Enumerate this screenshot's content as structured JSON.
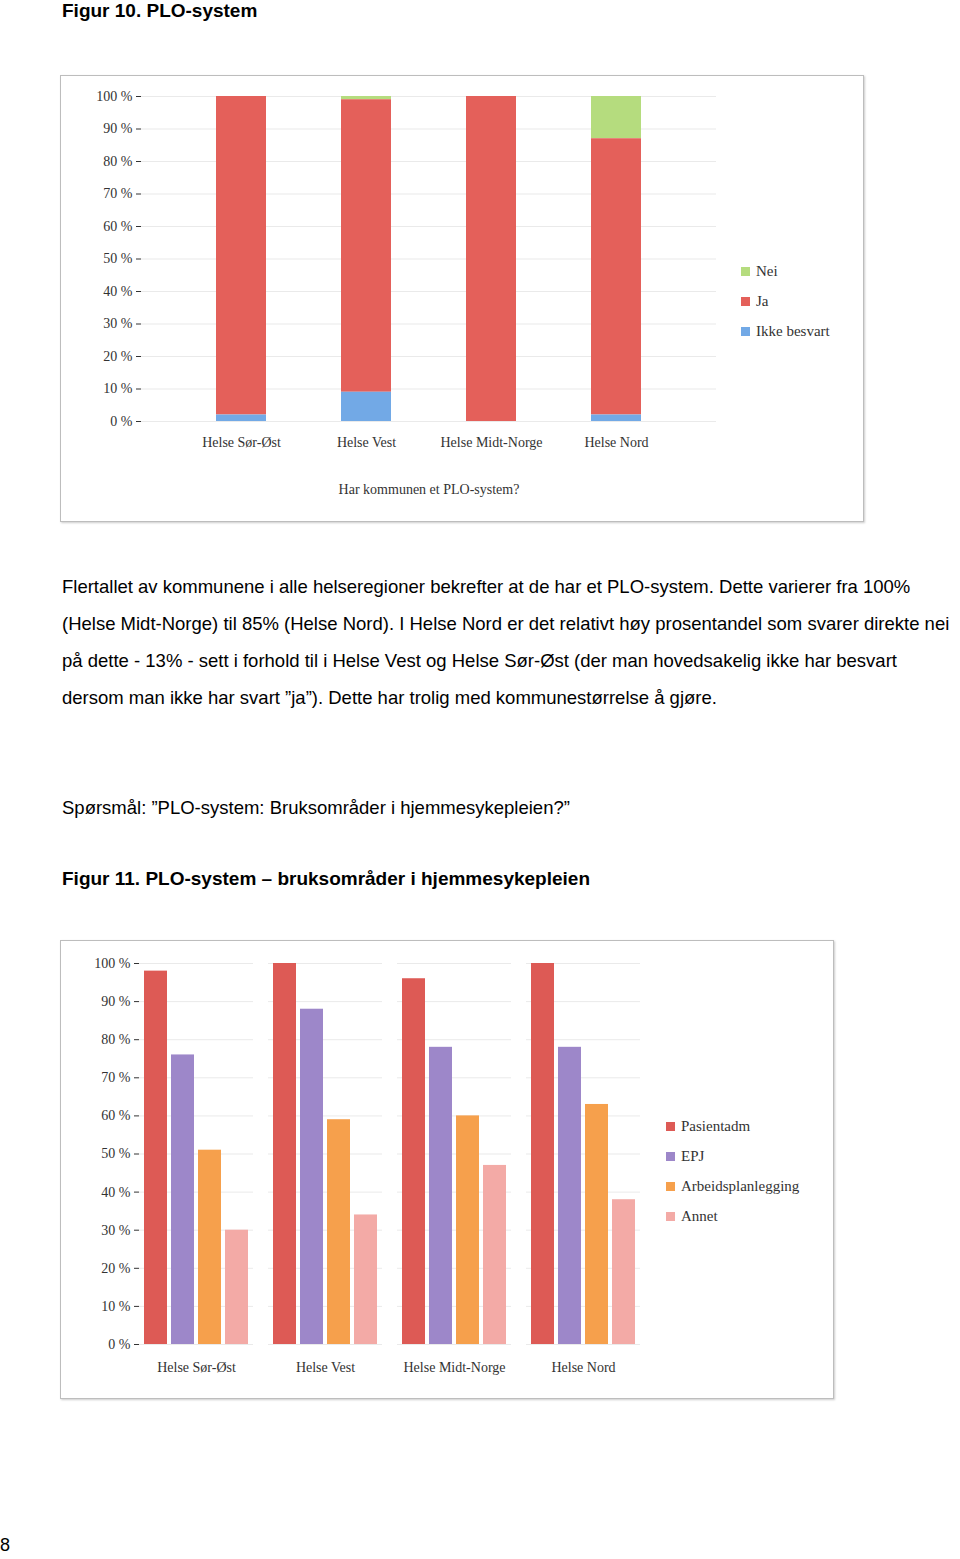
{
  "page": {
    "figure10_title": "Figur 10. PLO-system",
    "paragraph": "Flertallet av kommunene i alle helseregioner bekrefter at de har et PLO-system. Dette varierer fra 100% (Helse Midt-Norge) til 85% (Helse Nord). I Helse Nord er det relativt høy prosentandel som svarer direkte nei på dette - 13% - sett i forhold til i Helse Vest og Helse Sør-Øst (der man hovedsakelig ikke har besvart dersom man ikke har svart ”ja”). Dette har trolig med kommunestørrelse å gjøre.",
    "question": "Spørsmål: ”PLO-system: Bruksområder i hjemmesykepleien?”",
    "figure11_title": "Figur 11. PLO-system – bruksområder i hjemmesykepleien",
    "page_number": 8
  },
  "chart_data": [
    {
      "type": "bar",
      "stacked": true,
      "grid": true,
      "legend": "right",
      "x_label": "Har kommunen et PLO-system?",
      "categories": [
        "Helse Sør-Øst",
        "Helse Vest",
        "Helse Midt-Norge",
        "Helse Nord"
      ],
      "series": [
        {
          "name": "Nei",
          "color": "#b5dc7e",
          "values": [
            0,
            1,
            0,
            13
          ]
        },
        {
          "name": "Ja",
          "color": "#e4605a",
          "values": [
            98,
            90,
            100,
            85
          ]
        },
        {
          "name": "Ikke besvart",
          "color": "#72a9e6",
          "values": [
            2,
            9,
            0,
            2
          ]
        }
      ],
      "ylim": [
        0,
        100
      ],
      "yticks": [
        {
          "value": 0,
          "label": "0 %"
        },
        {
          "value": 10,
          "label": "10 %"
        },
        {
          "value": 20,
          "label": "20 %"
        },
        {
          "value": 30,
          "label": "30 %"
        },
        {
          "value": 40,
          "label": "40 %"
        },
        {
          "value": 50,
          "label": "50 %"
        },
        {
          "value": 60,
          "label": "60 %"
        },
        {
          "value": 70,
          "label": "70 %"
        },
        {
          "value": 80,
          "label": "80 %"
        },
        {
          "value": 90,
          "label": "90 %"
        },
        {
          "value": 100,
          "label": "100 %"
        }
      ]
    },
    {
      "type": "bar",
      "stacked": false,
      "grid": true,
      "legend": "right",
      "categories": [
        "Helse Sør-Øst",
        "Helse Vest",
        "Helse Midt-Norge",
        "Helse Nord"
      ],
      "series": [
        {
          "name": "Pasientadm",
          "color": "#dd5a55",
          "values": [
            98,
            100,
            96,
            100
          ]
        },
        {
          "name": "EPJ",
          "color": "#9d87c9",
          "values": [
            76,
            88,
            78,
            78
          ]
        },
        {
          "name": "Arbeidsplanlegging",
          "color": "#f6a04c",
          "values": [
            51,
            59,
            60,
            63
          ]
        },
        {
          "name": "Annet",
          "color": "#f3aaa6",
          "values": [
            30,
            34,
            47,
            38
          ]
        }
      ],
      "ylim": [
        0,
        100
      ],
      "yticks": [
        {
          "value": 0,
          "label": "0 %"
        },
        {
          "value": 10,
          "label": "10 %"
        },
        {
          "value": 20,
          "label": "20 %"
        },
        {
          "value": 30,
          "label": "30 %"
        },
        {
          "value": 40,
          "label": "40 %"
        },
        {
          "value": 50,
          "label": "50 %"
        },
        {
          "value": 60,
          "label": "60 %"
        },
        {
          "value": 70,
          "label": "70 %"
        },
        {
          "value": 80,
          "label": "80 %"
        },
        {
          "value": 90,
          "label": "90 %"
        },
        {
          "value": 100,
          "label": "100 %"
        }
      ]
    }
  ]
}
